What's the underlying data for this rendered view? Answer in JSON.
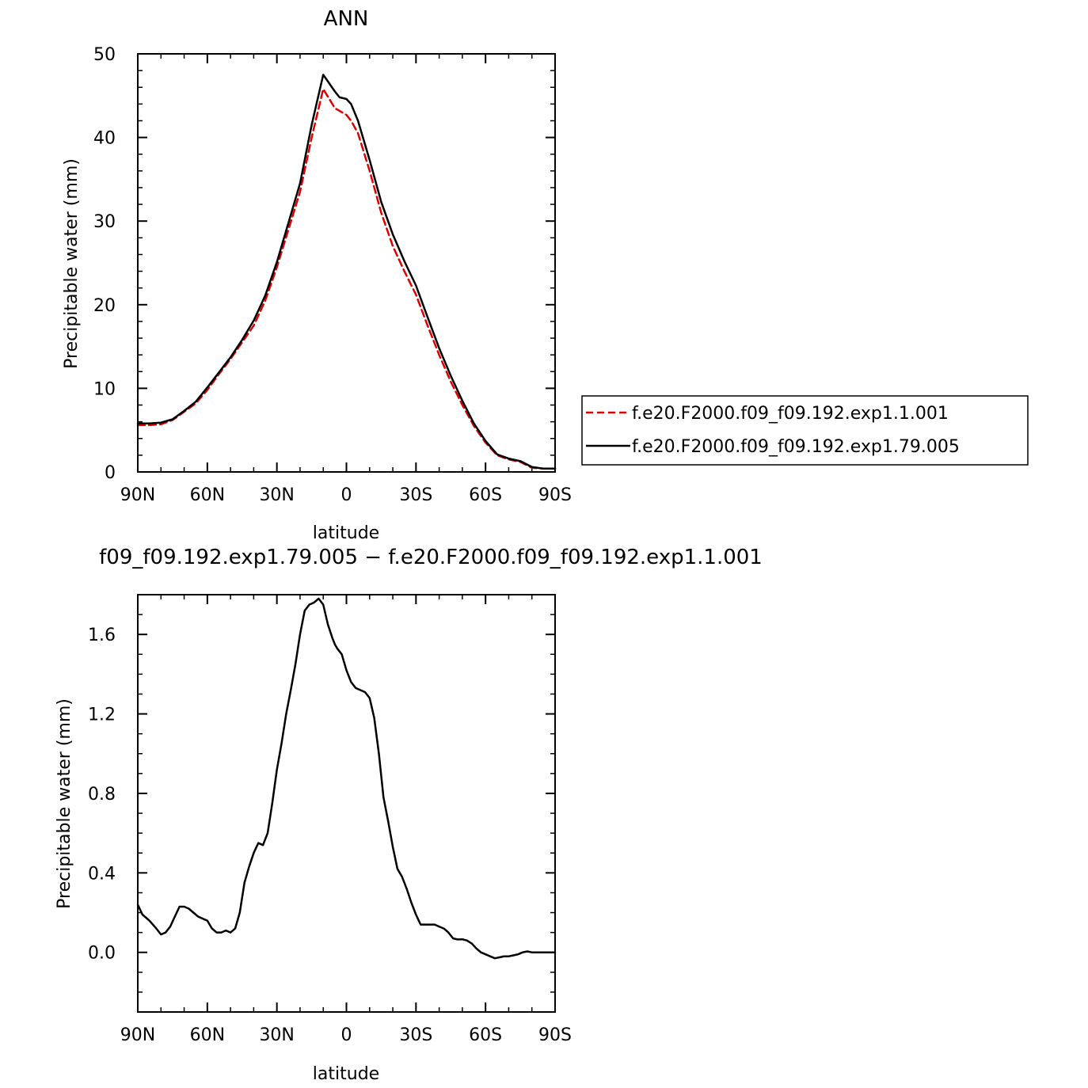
{
  "colors": {
    "red": "#e00000",
    "black": "#000000"
  },
  "chart_data": [
    {
      "type": "line",
      "title": "ANN",
      "xlabel": "latitude",
      "ylabel": "Precipitable water (mm)",
      "xlim": [
        90,
        -90
      ],
      "ylim": [
        0,
        50
      ],
      "x_ticks": [
        90,
        60,
        30,
        0,
        -30,
        -60,
        -90
      ],
      "x_tick_labels": [
        "90N",
        "60N",
        "30N",
        "0",
        "30S",
        "60S",
        "90S"
      ],
      "y_ticks": [
        0,
        10,
        20,
        30,
        40,
        50
      ],
      "y_tick_labels": [
        "0",
        "10",
        "20",
        "30",
        "40",
        "50"
      ],
      "legend": {
        "placement": "right"
      },
      "series": [
        {
          "name": "f.e20.F2000.f09_f09.192.exp1.1.001",
          "style": "dashed",
          "color": "#e00000",
          "x": [
            90,
            85,
            80,
            75,
            70,
            65,
            60,
            55,
            50,
            45,
            40,
            35,
            30,
            25,
            20,
            15,
            10,
            5,
            0,
            -2,
            -5,
            -10,
            -15,
            -20,
            -25,
            -30,
            -35,
            -40,
            -45,
            -50,
            -55,
            -60,
            -65,
            -70,
            -75,
            -80,
            -85,
            -90
          ],
          "y": [
            5.6,
            5.6,
            5.7,
            6.2,
            7.2,
            8.2,
            9.8,
            11.7,
            13.5,
            15.5,
            17.5,
            20.5,
            24.5,
            29,
            33.5,
            40,
            45.8,
            43.5,
            42.7,
            42,
            40.5,
            36,
            31,
            27,
            24,
            21.2,
            17.5,
            14,
            10.8,
            8,
            5.5,
            3.5,
            2,
            1.5,
            1.2,
            0.5,
            0.4,
            0.4
          ]
        },
        {
          "name": "f.e20.F2000.f09_f09.192.exp1.79.005",
          "style": "solid",
          "color": "#000000",
          "x": [
            90,
            85,
            80,
            75,
            70,
            65,
            60,
            55,
            50,
            45,
            40,
            35,
            30,
            25,
            20,
            15,
            10,
            5,
            3,
            0,
            -2,
            -5,
            -10,
            -15,
            -20,
            -25,
            -30,
            -35,
            -40,
            -45,
            -50,
            -55,
            -60,
            -65,
            -70,
            -75,
            -80,
            -85,
            -90
          ],
          "y": [
            5.8,
            5.8,
            5.9,
            6.3,
            7.3,
            8.4,
            10.1,
            11.9,
            13.7,
            15.8,
            18.1,
            21.1,
            25.1,
            29.8,
            34.5,
            41.5,
            47.5,
            45.5,
            44.8,
            44.6,
            44,
            42,
            37.3,
            32.3,
            28.4,
            25.2,
            22.3,
            18.5,
            14.8,
            11.5,
            8.5,
            5.8,
            3.7,
            2.1,
            1.6,
            1.3,
            0.6,
            0.4,
            0.4
          ]
        }
      ]
    },
    {
      "type": "line",
      "title": "f09_f09.192.exp1.79.005 − f.e20.F2000.f09_f09.192.exp1.1.001",
      "xlabel": "latitude",
      "ylabel": "Precipitable water (mm)",
      "xlim": [
        90,
        -90
      ],
      "ylim": [
        -0.3,
        1.8
      ],
      "x_ticks": [
        90,
        60,
        30,
        0,
        -30,
        -60,
        -90
      ],
      "x_tick_labels": [
        "90N",
        "60N",
        "30N",
        "0",
        "30S",
        "60S",
        "90S"
      ],
      "y_ticks": [
        0,
        0.4,
        0.8,
        1.2,
        1.6
      ],
      "y_tick_labels": [
        "0.0",
        "0.4",
        "0.8",
        "1.2",
        "1.6"
      ],
      "series": [
        {
          "color": "#000000",
          "style": "solid",
          "x": [
            90,
            88,
            85,
            82,
            80,
            78,
            76,
            74,
            72,
            70,
            68,
            66,
            64,
            62,
            60,
            58,
            56,
            54,
            52,
            50,
            48,
            46,
            44,
            42,
            40,
            38,
            36,
            34,
            32,
            30,
            28,
            26,
            24,
            22,
            20,
            18,
            16,
            14,
            12,
            10,
            8,
            6,
            5,
            4,
            2,
            0,
            -2,
            -4,
            -6,
            -8,
            -10,
            -12,
            -14,
            -16,
            -18,
            -20,
            -22,
            -24,
            -26,
            -28,
            -30,
            -32,
            -34,
            -36,
            -38,
            -40,
            -42,
            -44,
            -46,
            -48,
            -50,
            -52,
            -54,
            -56,
            -58,
            -60,
            -62,
            -64,
            -66,
            -68,
            -70,
            -72,
            -74,
            -76,
            -78,
            -80,
            -82,
            -84,
            -86,
            -88,
            -90
          ],
          "y": [
            0.24,
            0.19,
            0.16,
            0.12,
            0.09,
            0.1,
            0.13,
            0.18,
            0.23,
            0.23,
            0.22,
            0.2,
            0.18,
            0.17,
            0.16,
            0.12,
            0.1,
            0.1,
            0.11,
            0.1,
            0.12,
            0.2,
            0.35,
            0.43,
            0.5,
            0.55,
            0.54,
            0.6,
            0.75,
            0.92,
            1.05,
            1.2,
            1.32,
            1.45,
            1.6,
            1.72,
            1.75,
            1.76,
            1.78,
            1.75,
            1.65,
            1.58,
            1.55,
            1.53,
            1.5,
            1.42,
            1.36,
            1.33,
            1.32,
            1.31,
            1.28,
            1.18,
            1.0,
            0.78,
            0.66,
            0.53,
            0.42,
            0.38,
            0.32,
            0.25,
            0.19,
            0.14,
            0.14,
            0.14,
            0.14,
            0.13,
            0.12,
            0.1,
            0.07,
            0.065,
            0.066,
            0.06,
            0.045,
            0.02,
            0.0,
            -0.01,
            -0.02,
            -0.03,
            -0.025,
            -0.02,
            -0.02,
            -0.015,
            -0.01,
            0.0,
            0.005,
            0.0,
            0.0,
            0.0,
            0.0,
            0.0,
            0.0
          ]
        }
      ]
    }
  ]
}
